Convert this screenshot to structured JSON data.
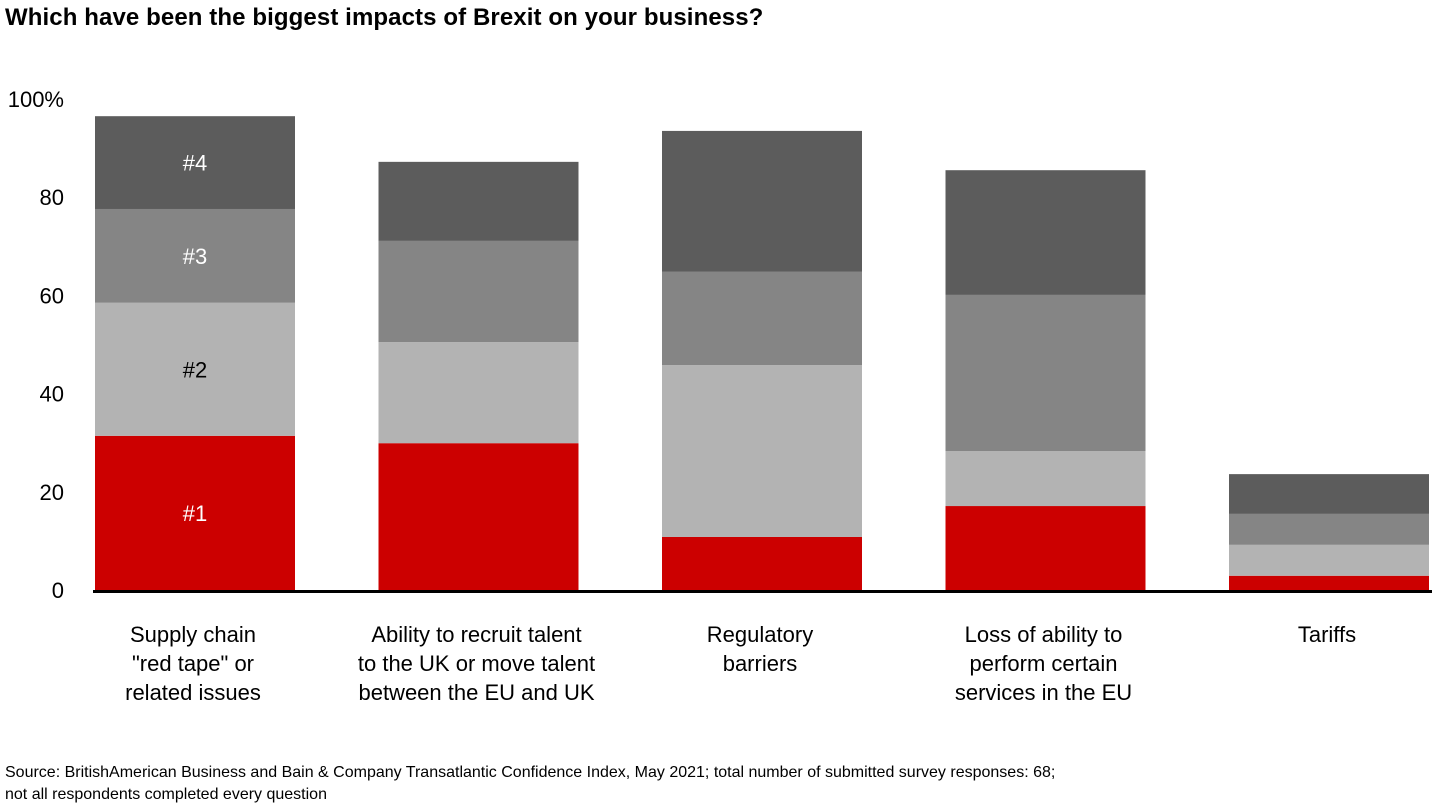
{
  "chart_data": {
    "type": "bar",
    "stacked": true,
    "title": "Which have been the biggest impacts of Brexit on your business?",
    "xlabel": "",
    "ylabel": "",
    "ylim": [
      0,
      100
    ],
    "yticks": [
      {
        "value": 0,
        "label": "0"
      },
      {
        "value": 20,
        "label": "20"
      },
      {
        "value": 40,
        "label": "40"
      },
      {
        "value": 60,
        "label": "60"
      },
      {
        "value": 80,
        "label": "80"
      },
      {
        "value": 100,
        "label": "100%"
      }
    ],
    "grid": false,
    "legend": "inline labels on first bar",
    "categories": [
      [
        "Supply chain",
        "\"red tape\" or",
        "related issues"
      ],
      [
        "Ability to recruit talent",
        "to the UK or move talent",
        "between the EU and UK"
      ],
      [
        "Regulatory",
        "barriers"
      ],
      [
        "Loss of ability to",
        "perform certain",
        "services in the EU"
      ],
      [
        "Tariffs"
      ]
    ],
    "series": [
      {
        "name": "#1",
        "color": "#cc0000",
        "label_color": "#ffffff",
        "values": [
          31.4,
          29.9,
          10.8,
          17.1,
          2.9
        ]
      },
      {
        "name": "#2",
        "color": "#b3b3b3",
        "label_color": "#000000",
        "values": [
          27.1,
          20.6,
          35.0,
          11.2,
          6.3
        ]
      },
      {
        "name": "#3",
        "color": "#858585",
        "label_color": "#ffffff",
        "values": [
          19.1,
          20.6,
          19.0,
          31.8,
          6.3
        ]
      },
      {
        "name": "#4",
        "color": "#5c5c5c",
        "label_color": "#ffffff",
        "values": [
          18.9,
          16.1,
          28.7,
          25.4,
          8.1
        ]
      }
    ]
  },
  "footer": {
    "source_line1": "Source: BritishAmerican Business and Bain & Company Transatlantic Confidence Index, May 2021; total number of submitted survey responses: 68;",
    "source_line2": "not all respondents completed every question"
  }
}
